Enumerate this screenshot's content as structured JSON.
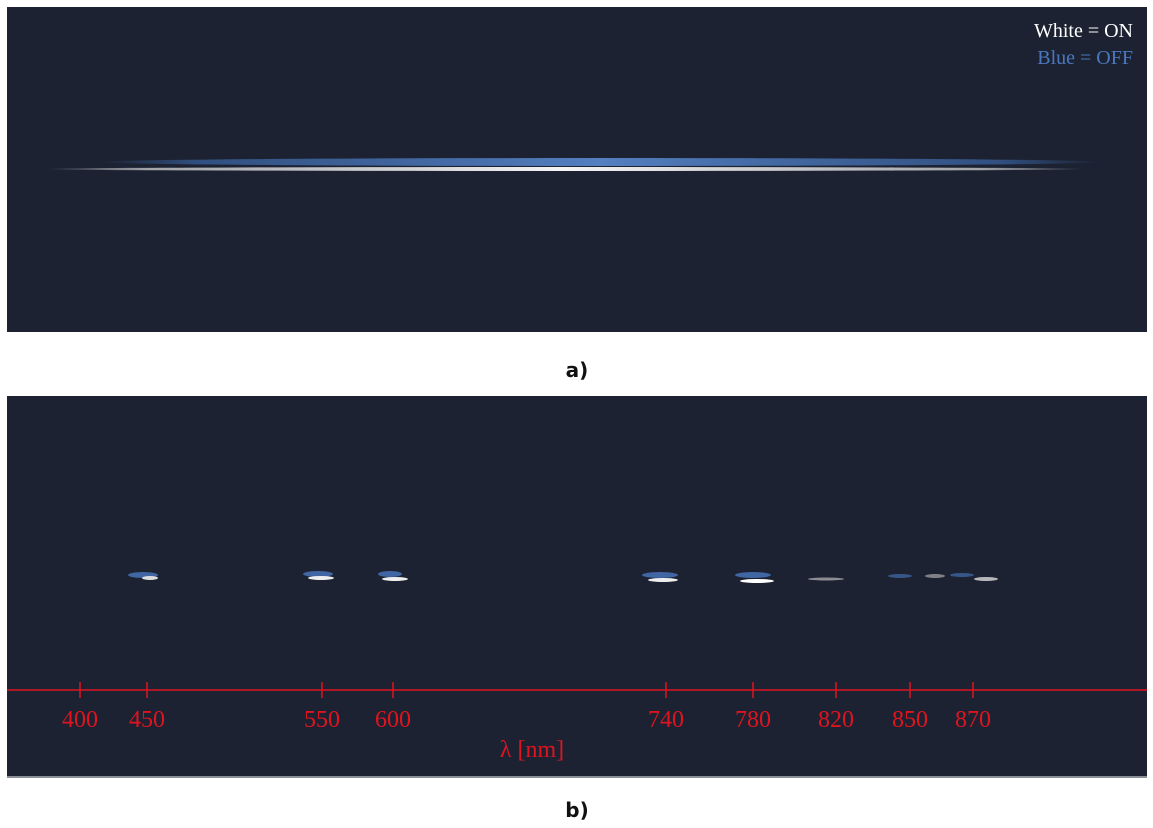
{
  "panel_a": {
    "legend": [
      "White = ON",
      "Blue = OFF"
    ],
    "label": "a)"
  },
  "panel_b": {
    "axis": {
      "ticks": [
        400,
        450,
        550,
        600,
        740,
        780,
        820,
        850,
        870
      ],
      "label": "λ [nm]"
    },
    "label": "b)"
  }
}
